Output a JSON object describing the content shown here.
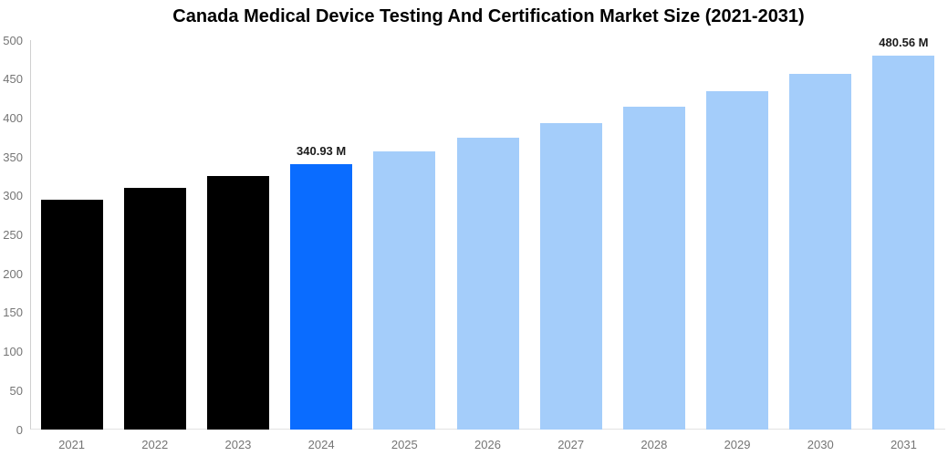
{
  "title": "Canada Medical Device Testing And Certification Market Size (2021-2031)",
  "colors": {
    "historical_bar": "#000000",
    "highlight_bar": "#0a6cff",
    "forecast_bar": "#a4cdfa",
    "axis_label": "#757575",
    "y_axis_line": "#cfcfcf",
    "x_axis_line": "#e2e2e2",
    "data_label": "#1b1b1b"
  },
  "chart_data": {
    "type": "bar",
    "title": "Canada Medical Device Testing And Certification Market Size (2021-2031)",
    "categories": [
      "2021",
      "2022",
      "2023",
      "2024",
      "2025",
      "2026",
      "2027",
      "2028",
      "2029",
      "2030",
      "2031"
    ],
    "values": [
      295,
      310,
      325,
      340.93,
      357,
      375,
      393,
      414,
      435,
      457,
      480.56
    ],
    "value_labels": [
      "",
      "",
      "",
      "340.93 M",
      "",
      "",
      "",
      "",
      "",
      "",
      "480.56 M"
    ],
    "bar_roles": [
      "historical",
      "historical",
      "historical",
      "highlight",
      "forecast",
      "forecast",
      "forecast",
      "forecast",
      "forecast",
      "forecast",
      "forecast"
    ],
    "role_colors": {
      "historical": "#000000",
      "highlight": "#0a6cff",
      "forecast": "#a4cdfa"
    },
    "xlabel": "",
    "ylabel": "",
    "ylim": [
      0,
      500
    ],
    "yticks": [
      0,
      50,
      100,
      150,
      200,
      250,
      300,
      350,
      400,
      450,
      500
    ],
    "grid": false,
    "legend": false
  }
}
